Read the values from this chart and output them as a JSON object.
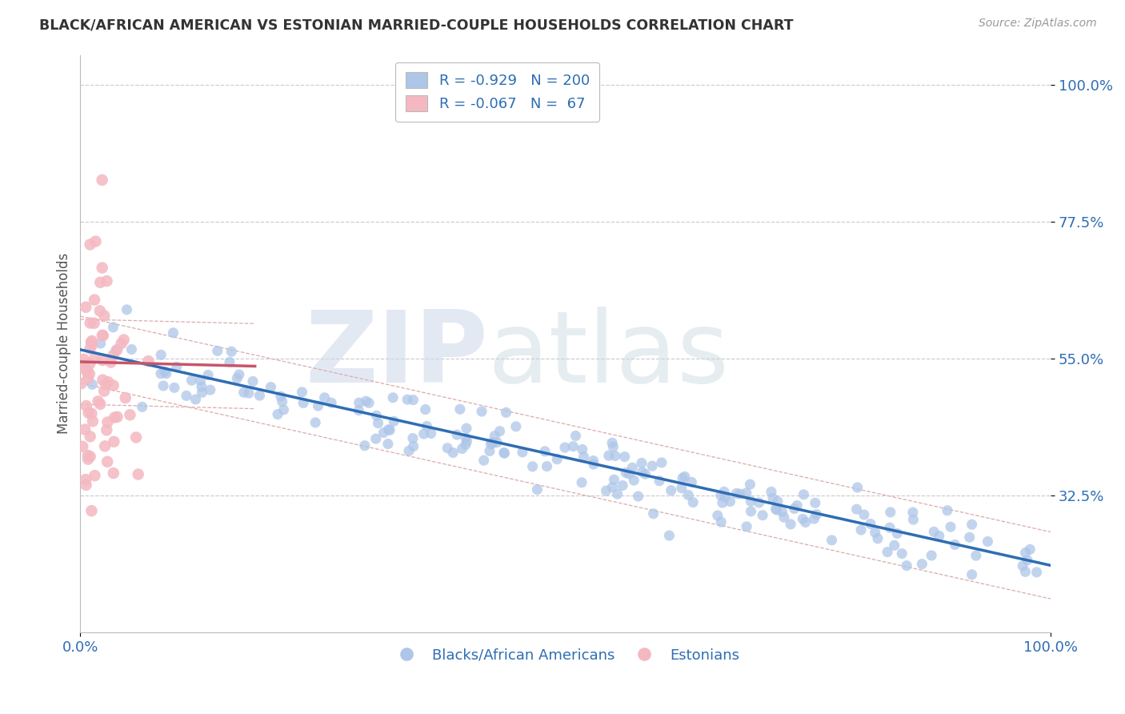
{
  "title": "BLACK/AFRICAN AMERICAN VS ESTONIAN MARRIED-COUPLE HOUSEHOLDS CORRELATION CHART",
  "source": "Source: ZipAtlas.com",
  "ylabel": "Married-couple Households",
  "watermark_zip": "ZIP",
  "watermark_atlas": "atlas",
  "xlim": [
    0.0,
    1.0
  ],
  "ylim": [
    0.1,
    1.05
  ],
  "yticks": [
    0.325,
    0.55,
    0.775,
    1.0
  ],
  "ytick_labels": [
    "32.5%",
    "55.0%",
    "77.5%",
    "100.0%"
  ],
  "xtick_labels": [
    "0.0%",
    "100.0%"
  ],
  "blue_color": "#aec6e8",
  "blue_line_color": "#2e6db4",
  "pink_color": "#f4b8c1",
  "pink_line_color": "#c8546a",
  "legend_text_color": "#2e6db4",
  "title_color": "#333333",
  "grid_color": "#cccccc",
  "background_color": "#ffffff",
  "blue_R": -0.929,
  "blue_N": 200,
  "pink_R": -0.067,
  "pink_N": 67,
  "blue_slope": -0.355,
  "blue_intercept": 0.565,
  "pink_slope": -0.04,
  "pink_intercept": 0.545
}
